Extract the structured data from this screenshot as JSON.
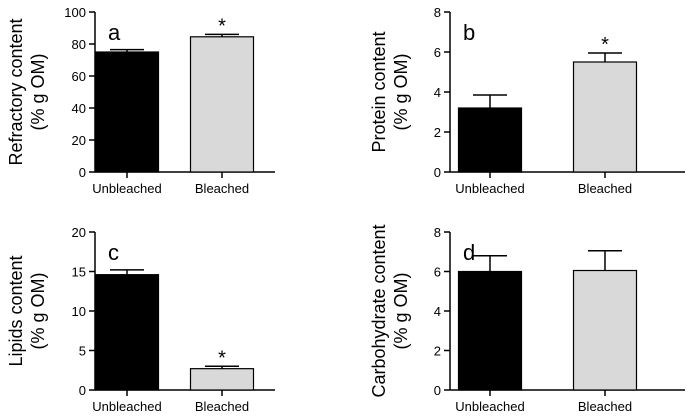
{
  "chart_data": [
    {
      "type": "bar",
      "panel": "a",
      "categories": [
        "Unbleached",
        "Bleached"
      ],
      "values": [
        75,
        84.5
      ],
      "errors": [
        1.5,
        1.5
      ],
      "significance": [
        "",
        "*"
      ],
      "ylabel": [
        "Refractory content",
        "(% g OM)"
      ],
      "ylim": [
        0,
        100
      ],
      "yticks": [
        0,
        20,
        40,
        60,
        80,
        100
      ]
    },
    {
      "type": "bar",
      "panel": "b",
      "categories": [
        "Unbleached",
        "Bleached"
      ],
      "values": [
        3.2,
        5.5
      ],
      "errors": [
        0.65,
        0.45
      ],
      "significance": [
        "",
        "*"
      ],
      "ylabel": [
        "Protein content",
        "(% g OM)"
      ],
      "ylim": [
        0,
        8
      ],
      "yticks": [
        0,
        2,
        4,
        6,
        8
      ]
    },
    {
      "type": "bar",
      "panel": "c",
      "categories": [
        "Unbleached",
        "Bleached"
      ],
      "values": [
        14.6,
        2.7
      ],
      "errors": [
        0.6,
        0.3
      ],
      "significance": [
        "",
        "*"
      ],
      "ylabel": [
        "Lipids content",
        "(% g OM)"
      ],
      "ylim": [
        0,
        20
      ],
      "yticks": [
        0,
        5,
        10,
        15,
        20
      ]
    },
    {
      "type": "bar",
      "panel": "d",
      "categories": [
        "Unbleached",
        "Bleached"
      ],
      "values": [
        6.0,
        6.05
      ],
      "errors": [
        0.8,
        1.0
      ],
      "significance": [
        "",
        ""
      ],
      "ylabel": [
        "Carbohydrate content",
        "(% g OM)"
      ],
      "ylim": [
        0,
        8
      ],
      "yticks": [
        0,
        2,
        4,
        6,
        8
      ]
    }
  ],
  "colors": {
    "unbleached": "#000000",
    "bleached": "#d9d9d9",
    "axis": "#000000"
  }
}
